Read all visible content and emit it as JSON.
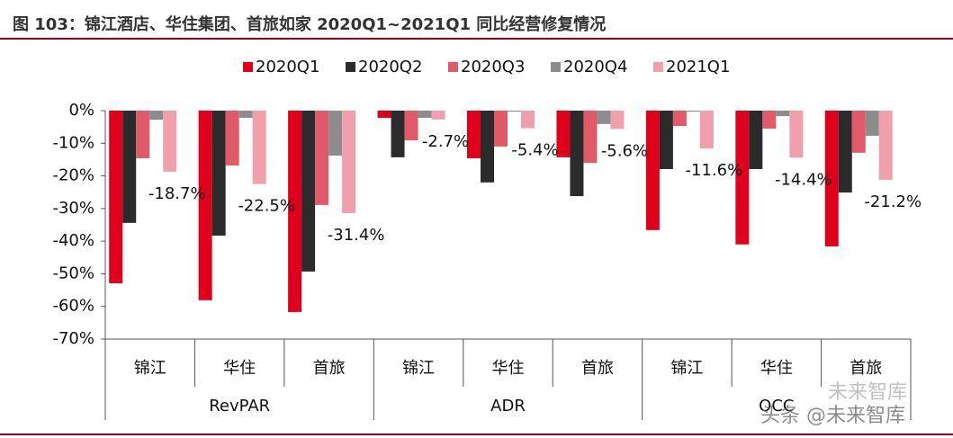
{
  "chart_data": {
    "type": "bar",
    "title": "图 103：锦江酒店、华住集团、首旅如家 2020Q1~2021Q1 同比经营修复情况",
    "categories": [
      "锦江",
      "华住",
      "首旅",
      "锦江",
      "华住",
      "首旅",
      "锦江",
      "华住",
      "首旅"
    ],
    "groups": [
      "RevPAR",
      "ADR",
      "OCC"
    ],
    "series": [
      {
        "name": "2020Q1",
        "color": "#e0001b",
        "values": [
          -52.9,
          -58.1,
          -61.7,
          -2.2,
          -14.6,
          -14.3,
          -36.6,
          -41.0,
          -41.6
        ]
      },
      {
        "name": "2020Q2",
        "color": "#2b2b2b",
        "values": [
          -34.4,
          -38.3,
          -49.3,
          -14.3,
          -22.0,
          -26.2,
          -17.9,
          -17.9,
          -25.1
        ]
      },
      {
        "name": "2020Q3",
        "color": "#e05a6a",
        "values": [
          -14.6,
          -16.8,
          -28.9,
          -9.1,
          -11.0,
          -16.0,
          -4.7,
          -5.5,
          -12.9
        ]
      },
      {
        "name": "2020Q4",
        "color": "#8c8c8c",
        "values": [
          -2.8,
          -2.2,
          -13.8,
          -2.2,
          -0.3,
          -4.1,
          -0.3,
          -1.7,
          -7.7
        ]
      },
      {
        "name": "2021Q1",
        "color": "#f0a0aa",
        "values": [
          -18.7,
          -22.5,
          -31.4,
          -2.7,
          -5.4,
          -5.6,
          -11.6,
          -14.4,
          -21.2
        ],
        "value_labels": [
          "-18.7%",
          "-22.5%",
          "-31.4%",
          "-2.7%",
          "-5.4%",
          "-5.6%",
          "-11.6%",
          "-14.4%",
          "-21.2%"
        ]
      }
    ],
    "ylim": [
      -70,
      0
    ],
    "yticks": [
      {
        "value": 0,
        "label": "0%"
      },
      {
        "value": -10,
        "label": "-10%"
      },
      {
        "value": -20,
        "label": "-20%"
      },
      {
        "value": -30,
        "label": "-30%"
      },
      {
        "value": -40,
        "label": "-40%"
      },
      {
        "value": -50,
        "label": "-50%"
      },
      {
        "value": -60,
        "label": "-60%"
      },
      {
        "value": -70,
        "label": "-70%"
      }
    ],
    "legend": "top",
    "watermark": [
      "未来智库",
      "头条 @未来智库"
    ]
  }
}
